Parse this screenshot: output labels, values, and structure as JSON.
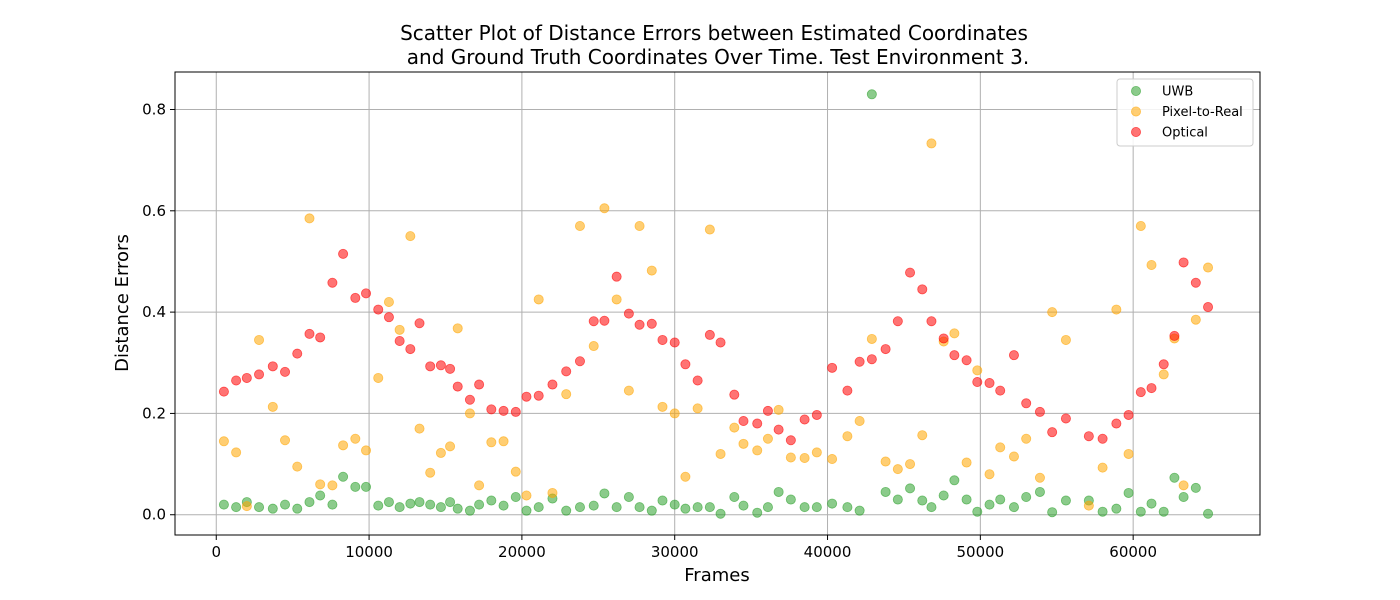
{
  "chart_data": {
    "type": "scatter",
    "title_lines": [
      "Scatter Plot of Distance Errors between Estimated Coordinates",
      "and Ground Truth Coordinates Over Time. Test Environment 3."
    ],
    "xlabel": "Frames",
    "ylabel": "Distance Errors",
    "xlim": [
      -2700,
      68300
    ],
    "ylim": [
      -0.04,
      0.874
    ],
    "xticks": [
      0,
      10000,
      20000,
      30000,
      40000,
      50000,
      60000
    ],
    "yticks": [
      0.0,
      0.2,
      0.4,
      0.6,
      0.8
    ],
    "xtick_labels": [
      "0",
      "10000",
      "20000",
      "30000",
      "40000",
      "50000",
      "60000"
    ],
    "ytick_labels": [
      "0.0",
      "0.2",
      "0.4",
      "0.6",
      "0.8"
    ],
    "grid": true,
    "legend_position": "top-right",
    "series": [
      {
        "name": "UWB",
        "color": "#2ca02c",
        "points": [
          [
            500,
            0.02
          ],
          [
            1300,
            0.015
          ],
          [
            2000,
            0.025
          ],
          [
            2800,
            0.015
          ],
          [
            3700,
            0.012
          ],
          [
            4500,
            0.02
          ],
          [
            5300,
            0.012
          ],
          [
            6100,
            0.025
          ],
          [
            6800,
            0.038
          ],
          [
            7600,
            0.02
          ],
          [
            8300,
            0.075
          ],
          [
            9100,
            0.055
          ],
          [
            9800,
            0.055
          ],
          [
            10600,
            0.018
          ],
          [
            11300,
            0.025
          ],
          [
            12000,
            0.015
          ],
          [
            12700,
            0.022
          ],
          [
            13300,
            0.025
          ],
          [
            14000,
            0.02
          ],
          [
            14700,
            0.015
          ],
          [
            15300,
            0.025
          ],
          [
            15800,
            0.012
          ],
          [
            16600,
            0.008
          ],
          [
            17200,
            0.02
          ],
          [
            18000,
            0.028
          ],
          [
            18800,
            0.018
          ],
          [
            19600,
            0.035
          ],
          [
            20300,
            0.008
          ],
          [
            21100,
            0.015
          ],
          [
            22000,
            0.032
          ],
          [
            22900,
            0.008
          ],
          [
            23800,
            0.015
          ],
          [
            24700,
            0.018
          ],
          [
            25400,
            0.042
          ],
          [
            26200,
            0.015
          ],
          [
            27000,
            0.035
          ],
          [
            27700,
            0.015
          ],
          [
            28500,
            0.008
          ],
          [
            29200,
            0.028
          ],
          [
            30000,
            0.02
          ],
          [
            30700,
            0.012
          ],
          [
            31500,
            0.015
          ],
          [
            32300,
            0.015
          ],
          [
            33000,
            0.002
          ],
          [
            33900,
            0.035
          ],
          [
            34500,
            0.018
          ],
          [
            35400,
            0.004
          ],
          [
            36100,
            0.015
          ],
          [
            36800,
            0.045
          ],
          [
            37600,
            0.03
          ],
          [
            38500,
            0.015
          ],
          [
            39300,
            0.015
          ],
          [
            40300,
            0.022
          ],
          [
            41300,
            0.015
          ],
          [
            42100,
            0.008
          ],
          [
            42900,
            0.83
          ],
          [
            43800,
            0.045
          ],
          [
            44600,
            0.03
          ],
          [
            45400,
            0.052
          ],
          [
            46200,
            0.028
          ],
          [
            46800,
            0.015
          ],
          [
            47600,
            0.038
          ],
          [
            48300,
            0.068
          ],
          [
            49100,
            0.03
          ],
          [
            49800,
            0.006
          ],
          [
            50600,
            0.02
          ],
          [
            51300,
            0.03
          ],
          [
            52200,
            0.015
          ],
          [
            53000,
            0.035
          ],
          [
            53900,
            0.045
          ],
          [
            54700,
            0.005
          ],
          [
            55600,
            0.028
          ],
          [
            57100,
            0.028
          ],
          [
            58000,
            0.006
          ],
          [
            58900,
            0.012
          ],
          [
            59700,
            0.043
          ],
          [
            60500,
            0.006
          ],
          [
            61200,
            0.022
          ],
          [
            62000,
            0.006
          ],
          [
            62700,
            0.073
          ],
          [
            63300,
            0.035
          ],
          [
            64100,
            0.053
          ],
          [
            64900,
            0.002
          ]
        ]
      },
      {
        "name": "Pixel-to-Real",
        "color": "#ffa500",
        "points": [
          [
            500,
            0.145
          ],
          [
            1300,
            0.123
          ],
          [
            2000,
            0.017
          ],
          [
            2800,
            0.345
          ],
          [
            3700,
            0.213
          ],
          [
            4500,
            0.147
          ],
          [
            5300,
            0.095
          ],
          [
            6100,
            0.585
          ],
          [
            6800,
            0.06
          ],
          [
            7600,
            0.058
          ],
          [
            8300,
            0.137
          ],
          [
            9100,
            0.15
          ],
          [
            9800,
            0.127
          ],
          [
            10600,
            0.27
          ],
          [
            11300,
            0.42
          ],
          [
            12000,
            0.365
          ],
          [
            12700,
            0.55
          ],
          [
            13300,
            0.17
          ],
          [
            14000,
            0.083
          ],
          [
            14700,
            0.122
          ],
          [
            15300,
            0.135
          ],
          [
            15800,
            0.368
          ],
          [
            16600,
            0.2
          ],
          [
            17200,
            0.058
          ],
          [
            18000,
            0.143
          ],
          [
            18800,
            0.145
          ],
          [
            19600,
            0.085
          ],
          [
            20300,
            0.038
          ],
          [
            21100,
            0.425
          ],
          [
            22000,
            0.043
          ],
          [
            22900,
            0.238
          ],
          [
            23800,
            0.57
          ],
          [
            24700,
            0.333
          ],
          [
            25400,
            0.605
          ],
          [
            26200,
            0.425
          ],
          [
            27000,
            0.245
          ],
          [
            27700,
            0.57
          ],
          [
            28500,
            0.482
          ],
          [
            29200,
            0.213
          ],
          [
            30000,
            0.2
          ],
          [
            30700,
            0.075
          ],
          [
            31500,
            0.21
          ],
          [
            32300,
            0.563
          ],
          [
            33000,
            0.12
          ],
          [
            33900,
            0.172
          ],
          [
            34500,
            0.14
          ],
          [
            35400,
            0.127
          ],
          [
            36100,
            0.15
          ],
          [
            36800,
            0.207
          ],
          [
            37600,
            0.113
          ],
          [
            38500,
            0.112
          ],
          [
            39300,
            0.123
          ],
          [
            40300,
            0.11
          ],
          [
            41300,
            0.155
          ],
          [
            42100,
            0.185
          ],
          [
            42900,
            0.347
          ],
          [
            43800,
            0.105
          ],
          [
            44600,
            0.09
          ],
          [
            45400,
            0.1
          ],
          [
            46200,
            0.157
          ],
          [
            46800,
            0.733
          ],
          [
            47600,
            0.342
          ],
          [
            48300,
            0.358
          ],
          [
            49100,
            0.103
          ],
          [
            49800,
            0.285
          ],
          [
            50600,
            0.08
          ],
          [
            51300,
            0.133
          ],
          [
            52200,
            0.115
          ],
          [
            53000,
            0.15
          ],
          [
            53900,
            0.073
          ],
          [
            54700,
            0.4
          ],
          [
            55600,
            0.345
          ],
          [
            57100,
            0.018
          ],
          [
            58000,
            0.093
          ],
          [
            58900,
            0.405
          ],
          [
            59700,
            0.12
          ],
          [
            60500,
            0.57
          ],
          [
            61200,
            0.493
          ],
          [
            62000,
            0.277
          ],
          [
            62700,
            0.348
          ],
          [
            63300,
            0.058
          ],
          [
            64100,
            0.385
          ],
          [
            64900,
            0.488
          ]
        ]
      },
      {
        "name": "Optical",
        "color": "#ff0000",
        "points": [
          [
            500,
            0.243
          ],
          [
            1300,
            0.265
          ],
          [
            2000,
            0.27
          ],
          [
            2800,
            0.277
          ],
          [
            3700,
            0.293
          ],
          [
            4500,
            0.282
          ],
          [
            5300,
            0.318
          ],
          [
            6100,
            0.357
          ],
          [
            6800,
            0.35
          ],
          [
            7600,
            0.458
          ],
          [
            8300,
            0.515
          ],
          [
            9100,
            0.428
          ],
          [
            9800,
            0.437
          ],
          [
            10600,
            0.405
          ],
          [
            11300,
            0.39
          ],
          [
            12000,
            0.343
          ],
          [
            12700,
            0.327
          ],
          [
            13300,
            0.378
          ],
          [
            14000,
            0.293
          ],
          [
            14700,
            0.295
          ],
          [
            15300,
            0.288
          ],
          [
            15800,
            0.253
          ],
          [
            16600,
            0.227
          ],
          [
            17200,
            0.257
          ],
          [
            18000,
            0.208
          ],
          [
            18800,
            0.205
          ],
          [
            19600,
            0.203
          ],
          [
            20300,
            0.233
          ],
          [
            21100,
            0.235
          ],
          [
            22000,
            0.257
          ],
          [
            22900,
            0.283
          ],
          [
            23800,
            0.303
          ],
          [
            24700,
            0.382
          ],
          [
            25400,
            0.383
          ],
          [
            26200,
            0.47
          ],
          [
            27000,
            0.397
          ],
          [
            27700,
            0.375
          ],
          [
            28500,
            0.377
          ],
          [
            29200,
            0.345
          ],
          [
            30000,
            0.34
          ],
          [
            30700,
            0.297
          ],
          [
            31500,
            0.265
          ],
          [
            32300,
            0.355
          ],
          [
            33000,
            0.34
          ],
          [
            33900,
            0.237
          ],
          [
            34500,
            0.185
          ],
          [
            35400,
            0.18
          ],
          [
            36100,
            0.205
          ],
          [
            36800,
            0.168
          ],
          [
            37600,
            0.147
          ],
          [
            38500,
            0.188
          ],
          [
            39300,
            0.197
          ],
          [
            40300,
            0.29
          ],
          [
            41300,
            0.245
          ],
          [
            42100,
            0.302
          ],
          [
            42900,
            0.307
          ],
          [
            43800,
            0.327
          ],
          [
            44600,
            0.382
          ],
          [
            45400,
            0.478
          ],
          [
            46200,
            0.445
          ],
          [
            46800,
            0.382
          ],
          [
            47600,
            0.348
          ],
          [
            48300,
            0.315
          ],
          [
            49100,
            0.305
          ],
          [
            49800,
            0.262
          ],
          [
            50600,
            0.26
          ],
          [
            51300,
            0.245
          ],
          [
            52200,
            0.315
          ],
          [
            53000,
            0.22
          ],
          [
            53900,
            0.203
          ],
          [
            54700,
            0.163
          ],
          [
            55600,
            0.19
          ],
          [
            57100,
            0.155
          ],
          [
            58000,
            0.15
          ],
          [
            58900,
            0.18
          ],
          [
            59700,
            0.197
          ],
          [
            60500,
            0.242
          ],
          [
            61200,
            0.25
          ],
          [
            62000,
            0.297
          ],
          [
            62700,
            0.353
          ],
          [
            63300,
            0.498
          ],
          [
            64100,
            0.458
          ],
          [
            64900,
            0.41
          ]
        ]
      }
    ]
  }
}
